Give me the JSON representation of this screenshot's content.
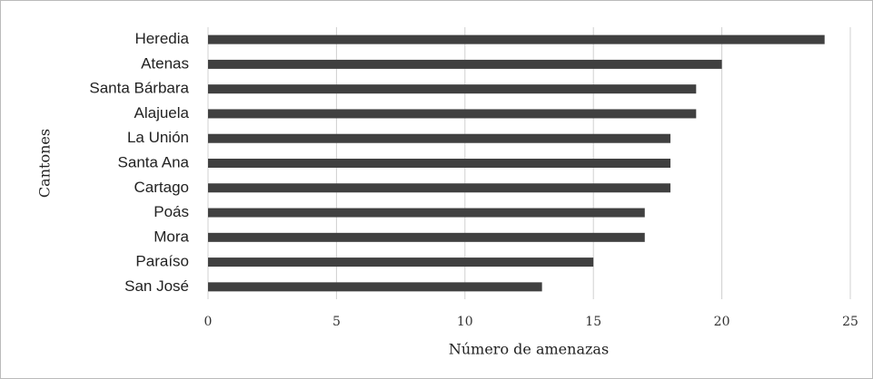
{
  "chart_data": {
    "type": "bar",
    "orientation": "horizontal",
    "xlabel": "Número de amenazas",
    "ylabel": "Cantones",
    "categories": [
      "Heredia",
      "Atenas",
      "Santa Bárbara",
      "Alajuela",
      "La Unión",
      "Santa Ana",
      "Cartago",
      "Poás",
      "Mora",
      "Paraíso",
      "San José"
    ],
    "values": [
      24,
      20,
      19,
      19,
      18,
      18,
      18,
      17,
      17,
      15,
      13
    ],
    "color": "#404040",
    "xlim": [
      0,
      25
    ],
    "xticks": [
      0,
      5,
      10,
      15,
      20,
      25
    ],
    "grid": true
  }
}
